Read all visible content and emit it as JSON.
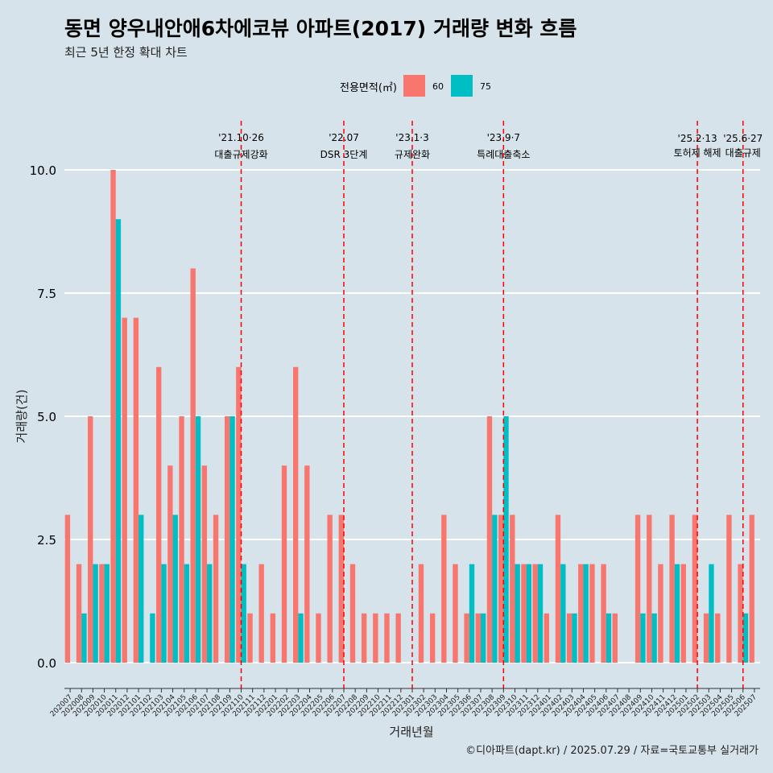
{
  "chart_data": {
    "type": "bar",
    "title": "동면 양우내안애6차에코뷰 아파트(2017) 거래량 변화 흐름",
    "subtitle": "최근 5년 한정 확대 차트",
    "xlabel": "거래년월",
    "ylabel": "거래량(건)",
    "ylim": [
      0,
      10
    ],
    "yticks": [
      "0.0",
      "2.5",
      "5.0",
      "7.5",
      "10.0"
    ],
    "grid": true,
    "legend": {
      "title": "전용면적(㎡)",
      "position": "top",
      "entries": [
        {
          "name": "60",
          "color": "#f8766d"
        },
        {
          "name": "75",
          "color": "#00bfc4"
        }
      ]
    },
    "categories": [
      "202007",
      "202008",
      "202009",
      "202010",
      "202011",
      "202012",
      "202101",
      "202102",
      "202103",
      "202104",
      "202105",
      "202106",
      "202107",
      "202108",
      "202109",
      "202110",
      "202111",
      "202112",
      "202201",
      "202202",
      "202203",
      "202204",
      "202205",
      "202206",
      "202207",
      "202208",
      "202209",
      "202210",
      "202211",
      "202212",
      "202301",
      "202302",
      "202303",
      "202304",
      "202305",
      "202306",
      "202307",
      "202308",
      "202309",
      "202310",
      "202311",
      "202312",
      "202401",
      "202402",
      "202403",
      "202404",
      "202405",
      "202406",
      "202407",
      "202408",
      "202409",
      "202410",
      "202411",
      "202412",
      "202501",
      "202502",
      "202503",
      "202504",
      "202505",
      "202506",
      "202507"
    ],
    "series": [
      {
        "name": "60",
        "color": "#f8766d",
        "values": [
          3,
          2,
          5,
          2,
          10,
          7,
          7,
          0,
          6,
          4,
          5,
          8,
          4,
          3,
          5,
          6,
          1,
          2,
          1,
          4,
          6,
          4,
          1,
          3,
          3,
          2,
          1,
          1,
          1,
          1,
          0,
          2,
          1,
          3,
          2,
          1,
          1,
          5,
          3,
          3,
          2,
          2,
          1,
          3,
          1,
          2,
          2,
          2,
          1,
          0,
          3,
          3,
          2,
          3,
          2,
          3,
          1,
          1,
          3,
          2,
          3
        ]
      },
      {
        "name": "75",
        "color": "#00bfc4",
        "values": [
          0,
          1,
          2,
          2,
          9,
          0,
          3,
          1,
          2,
          3,
          2,
          5,
          2,
          0,
          5,
          2,
          0,
          0,
          0,
          0,
          1,
          0,
          0,
          0,
          0,
          0,
          0,
          0,
          0,
          0,
          0,
          0,
          0,
          0,
          0,
          2,
          1,
          3,
          5,
          2,
          2,
          2,
          0,
          2,
          1,
          2,
          0,
          1,
          0,
          0,
          1,
          1,
          0,
          2,
          0,
          0,
          2,
          0,
          0,
          1,
          0
        ]
      }
    ],
    "annotations": [
      {
        "date": "'21.10·26",
        "label": "대출규제강화",
        "index": 15
      },
      {
        "date": "'22.07",
        "label": "DSR 3단계",
        "index": 24
      },
      {
        "date": "'23.1·3",
        "label": "규제완화",
        "index": 30
      },
      {
        "date": "'23.9·7",
        "label": "특례대출축소",
        "index": 38
      },
      {
        "date": "'25.2·13",
        "label": "토허제 해제",
        "index": 55
      },
      {
        "date": "'25.6·27",
        "label": "대출규제",
        "index": 59
      }
    ],
    "caption": "©디아파트(dapt.kr) / 2025.07.29 / 자료=국토교통부 실거래가"
  }
}
